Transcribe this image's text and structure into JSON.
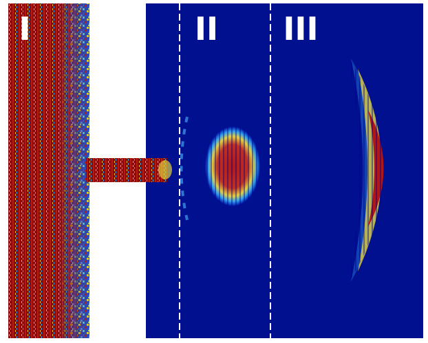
{
  "panels": {
    "labels": [
      "I",
      "II",
      "III"
    ]
  }
}
